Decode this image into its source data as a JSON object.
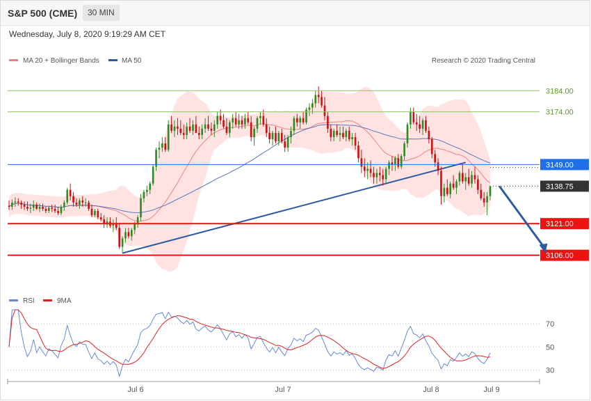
{
  "header": {
    "instrument": "S&P 500 (CME)",
    "timeframe": "30 MIN"
  },
  "timestamp": "Wednesday, July 8, 2020 9:19:29 AM CET",
  "copyright": "Research © 2020 Trading Central",
  "legend": {
    "ma20": "MA 20 + Bollinger Bands",
    "ma50": "MA 50",
    "rsi": "RSI",
    "rsi_ma": "9MA"
  },
  "colors": {
    "bull": "#2e8b22",
    "bear": "#cc1111",
    "ma20": "#f08080",
    "band": "#ffdede",
    "ma50": "#5a76b8",
    "trendline": "#2d5aa0",
    "support": "#ee1111",
    "resistance_green": "#8dc063",
    "level_blue": "#1f6fe6",
    "current": "#333333",
    "rsi": "#6688dd",
    "rsi_ma": "#dd2222"
  },
  "chart_data": [
    {
      "type": "candlestick",
      "title": "S&P 500 (CME)",
      "interval": "30 MIN",
      "x_tick_labels": [
        "Jul 6",
        "Jul 7",
        "Jul 8",
        "Jul 9"
      ],
      "y_range": [
        3095,
        3194
      ],
      "series_names": [
        "MA 20 + Bollinger Bands",
        "MA 50"
      ],
      "levels": [
        {
          "label": "3184.00",
          "value": 3184,
          "style": "resistance_green"
        },
        {
          "label": "3174.00",
          "value": 3174,
          "style": "resistance_green"
        },
        {
          "label": "3149.00",
          "value": 3149,
          "style": "level_blue"
        },
        {
          "label": "3138.75",
          "value": 3138.75,
          "style": "current"
        },
        {
          "label": "3121.00",
          "value": 3121,
          "style": "support"
        },
        {
          "label": "3106.00",
          "value": 3106,
          "style": "support"
        }
      ],
      "trendline": {
        "from": {
          "bar": 37,
          "price": 3107
        },
        "to": {
          "bar": 149,
          "price": 3150
        }
      },
      "forecast_arrow": {
        "from": {
          "bar": 160,
          "price": 3138.75
        },
        "to": {
          "bar": 175,
          "price": 3107
        }
      },
      "candles": [
        [
          3129.5,
          3132,
          3127.5,
          3129
        ],
        [
          3129,
          3132.5,
          3127.5,
          3131
        ],
        [
          3131,
          3133.5,
          3129,
          3131.5
        ],
        [
          3131.5,
          3133,
          3129.5,
          3131
        ],
        [
          3131,
          3132,
          3128,
          3130
        ],
        [
          3130,
          3131.5,
          3127.5,
          3129
        ],
        [
          3129,
          3131.5,
          3127,
          3128
        ],
        [
          3128,
          3130.5,
          3126,
          3128.5
        ],
        [
          3128.5,
          3132,
          3127,
          3130
        ],
        [
          3130,
          3131,
          3127.5,
          3128
        ],
        [
          3128,
          3130.5,
          3126.5,
          3129
        ],
        [
          3129,
          3130.5,
          3127,
          3128
        ],
        [
          3128,
          3129,
          3126,
          3127
        ],
        [
          3127,
          3129.5,
          3126,
          3128.5
        ],
        [
          3128.5,
          3130,
          3126.5,
          3128
        ],
        [
          3128,
          3130,
          3126,
          3127
        ],
        [
          3127,
          3129,
          3125,
          3126
        ],
        [
          3126,
          3130,
          3125,
          3129
        ],
        [
          3129,
          3132,
          3127,
          3131
        ],
        [
          3131,
          3138,
          3130,
          3137
        ],
        [
          3137,
          3140,
          3132,
          3134
        ],
        [
          3134,
          3136,
          3129,
          3131
        ],
        [
          3131,
          3133,
          3129,
          3130
        ],
        [
          3130,
          3133,
          3128,
          3132
        ],
        [
          3132,
          3134,
          3129,
          3131
        ],
        [
          3131,
          3133,
          3129,
          3131
        ],
        [
          3131,
          3132,
          3127,
          3128
        ],
        [
          3128,
          3130,
          3124,
          3125
        ],
        [
          3125,
          3128,
          3124,
          3127
        ],
        [
          3127,
          3128,
          3123,
          3124
        ],
        [
          3124,
          3126,
          3122,
          3123
        ],
        [
          3123,
          3125,
          3119,
          3121
        ],
        [
          3121,
          3124,
          3119,
          3122
        ],
        [
          3122,
          3124,
          3119,
          3120
        ],
        [
          3120,
          3123,
          3117,
          3121
        ],
        [
          3121,
          3124,
          3118,
          3119
        ],
        [
          3119,
          3121,
          3109,
          3110
        ],
        [
          3110,
          3115,
          3107,
          3114
        ],
        [
          3114,
          3119,
          3112,
          3117
        ],
        [
          3117,
          3119,
          3114,
          3115
        ],
        [
          3115,
          3119,
          3113,
          3118
        ],
        [
          3118,
          3122,
          3116,
          3121
        ],
        [
          3121,
          3125,
          3119,
          3124
        ],
        [
          3124,
          3135,
          3122,
          3133
        ],
        [
          3133,
          3137,
          3131,
          3136
        ],
        [
          3136,
          3139,
          3134,
          3137
        ],
        [
          3137,
          3141,
          3135,
          3140
        ],
        [
          3140,
          3149,
          3139,
          3148
        ],
        [
          3148,
          3157,
          3146,
          3156
        ],
        [
          3156,
          3160,
          3152,
          3157
        ],
        [
          3157,
          3162,
          3155,
          3159
        ],
        [
          3159,
          3162,
          3155,
          3156
        ],
        [
          3156,
          3170,
          3155,
          3168
        ],
        [
          3168,
          3172,
          3164,
          3165
        ],
        [
          3165,
          3170,
          3162,
          3167
        ],
        [
          3167,
          3171,
          3163,
          3166
        ],
        [
          3166,
          3170,
          3163,
          3164
        ],
        [
          3164,
          3168,
          3161,
          3163
        ],
        [
          3163,
          3169,
          3161,
          3167
        ],
        [
          3167,
          3171,
          3164,
          3165
        ],
        [
          3165,
          3170,
          3163,
          3168
        ],
        [
          3168,
          3172,
          3164,
          3164
        ],
        [
          3164,
          3167,
          3161,
          3163
        ],
        [
          3163,
          3168,
          3161,
          3166
        ],
        [
          3166,
          3171,
          3164,
          3168
        ],
        [
          3168,
          3172,
          3165,
          3166
        ],
        [
          3166,
          3169,
          3163,
          3165
        ],
        [
          3165,
          3170,
          3162,
          3168
        ],
        [
          3168,
          3174,
          3166,
          3172
        ],
        [
          3172,
          3175,
          3168,
          3170
        ],
        [
          3170,
          3173,
          3166,
          3167
        ],
        [
          3167,
          3171,
          3163,
          3164
        ],
        [
          3164,
          3170,
          3162,
          3169
        ],
        [
          3169,
          3173,
          3166,
          3171
        ],
        [
          3171,
          3174,
          3167,
          3168
        ],
        [
          3168,
          3173,
          3166,
          3170
        ],
        [
          3170,
          3172,
          3166,
          3168
        ],
        [
          3168,
          3173,
          3166,
          3171
        ],
        [
          3171,
          3174,
          3168,
          3169
        ],
        [
          3169,
          3172,
          3160,
          3162
        ],
        [
          3162,
          3167,
          3158,
          3166
        ],
        [
          3166,
          3172,
          3164,
          3171
        ],
        [
          3171,
          3174,
          3168,
          3172
        ],
        [
          3172,
          3175,
          3167,
          3168
        ],
        [
          3168,
          3171,
          3162,
          3164
        ],
        [
          3164,
          3167,
          3159,
          3161
        ],
        [
          3161,
          3165,
          3158,
          3164
        ],
        [
          3164,
          3167,
          3159,
          3160
        ],
        [
          3160,
          3165,
          3158,
          3164
        ],
        [
          3164,
          3166,
          3159,
          3160
        ],
        [
          3160,
          3163,
          3155,
          3157
        ],
        [
          3157,
          3163,
          3155,
          3162
        ],
        [
          3162,
          3167,
          3159,
          3165
        ],
        [
          3165,
          3172,
          3163,
          3171
        ],
        [
          3171,
          3173,
          3167,
          3169
        ],
        [
          3169,
          3172,
          3166,
          3171
        ],
        [
          3171,
          3174,
          3168,
          3169
        ],
        [
          3169,
          3176,
          3168,
          3175
        ],
        [
          3175,
          3178,
          3172,
          3176
        ],
        [
          3176,
          3180,
          3173,
          3178
        ],
        [
          3178,
          3184,
          3176,
          3182
        ],
        [
          3182,
          3186,
          3178,
          3181
        ],
        [
          3181,
          3184,
          3176,
          3177
        ],
        [
          3177,
          3181,
          3170,
          3172
        ],
        [
          3172,
          3174,
          3164,
          3166
        ],
        [
          3166,
          3168,
          3160,
          3162
        ],
        [
          3162,
          3166,
          3160,
          3165
        ],
        [
          3165,
          3168,
          3162,
          3163
        ],
        [
          3163,
          3167,
          3160,
          3164
        ],
        [
          3164,
          3167,
          3161,
          3162
        ],
        [
          3162,
          3166,
          3160,
          3165
        ],
        [
          3165,
          3167,
          3160,
          3161
        ],
        [
          3161,
          3164,
          3158,
          3162
        ],
        [
          3162,
          3164,
          3156,
          3158
        ],
        [
          3158,
          3160,
          3150,
          3152
        ],
        [
          3152,
          3156,
          3145,
          3148
        ],
        [
          3148,
          3152,
          3143,
          3146
        ],
        [
          3146,
          3150,
          3142,
          3147
        ],
        [
          3147,
          3151,
          3143,
          3145
        ],
        [
          3145,
          3148,
          3140,
          3143
        ],
        [
          3143,
          3147,
          3140,
          3145
        ],
        [
          3145,
          3148,
          3141,
          3144
        ],
        [
          3144,
          3147,
          3139,
          3142
        ],
        [
          3142,
          3148,
          3140,
          3147
        ],
        [
          3147,
          3151,
          3144,
          3150
        ],
        [
          3150,
          3153,
          3146,
          3149
        ],
        [
          3149,
          3153,
          3146,
          3152
        ],
        [
          3152,
          3154,
          3147,
          3148
        ],
        [
          3148,
          3154,
          3147,
          3153
        ],
        [
          3153,
          3160,
          3151,
          3159
        ],
        [
          3159,
          3169,
          3157,
          3168
        ],
        [
          3168,
          3176,
          3166,
          3174
        ],
        [
          3174,
          3176,
          3168,
          3169
        ],
        [
          3169,
          3173,
          3165,
          3168
        ],
        [
          3168,
          3172,
          3164,
          3166
        ],
        [
          3166,
          3171,
          3163,
          3170
        ],
        [
          3170,
          3172,
          3164,
          3165
        ],
        [
          3165,
          3167,
          3159,
          3161
        ],
        [
          3161,
          3162,
          3152,
          3154
        ],
        [
          3154,
          3156,
          3148,
          3150
        ],
        [
          3150,
          3152,
          3144,
          3146
        ],
        [
          3146,
          3148,
          3130,
          3134
        ],
        [
          3134,
          3140,
          3131,
          3138
        ],
        [
          3138,
          3142,
          3134,
          3135
        ],
        [
          3135,
          3141,
          3133,
          3140
        ],
        [
          3140,
          3144,
          3137,
          3138
        ],
        [
          3138,
          3142,
          3135,
          3141
        ],
        [
          3141,
          3146,
          3139,
          3145
        ],
        [
          3145,
          3149,
          3140,
          3141
        ],
        [
          3141,
          3145,
          3137,
          3143
        ],
        [
          3143,
          3147,
          3139,
          3140
        ],
        [
          3140,
          3146,
          3138,
          3144
        ],
        [
          3144,
          3148,
          3140,
          3142
        ],
        [
          3142,
          3144,
          3135,
          3137
        ],
        [
          3137,
          3140,
          3132,
          3133
        ],
        [
          3133,
          3136,
          3129,
          3131
        ],
        [
          3131,
          3136,
          3125,
          3134
        ],
        [
          3134,
          3139,
          3132,
          3138.75
        ]
      ]
    },
    {
      "type": "line",
      "title": "RSI",
      "y_tick_labels": [
        "70",
        "50",
        "30"
      ],
      "y_range": [
        22,
        82
      ],
      "series_names": [
        "RSI",
        "9MA"
      ]
    }
  ]
}
